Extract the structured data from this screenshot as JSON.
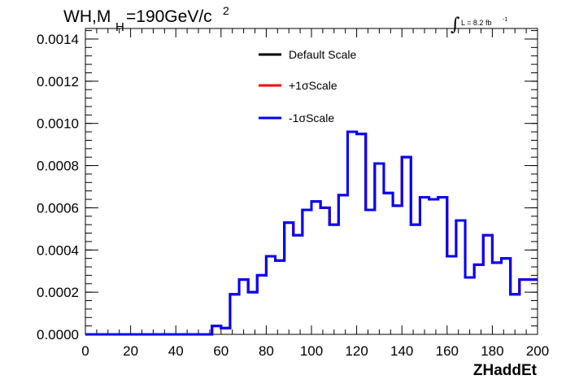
{
  "chart_data": {
    "type": "line",
    "drawstyle": "step",
    "title_main": "WH,M",
    "title_sub": "H",
    "title_rest": "=190GeV/c",
    "title_sup": "2",
    "lumi_label": "L = 8.2 fb",
    "lumi_sup": "-1",
    "lumi_symbol": "∫",
    "xlabel": "ZHaddEt",
    "ylabel": "",
    "xlim": [
      0,
      200
    ],
    "ylim": [
      0,
      0.00145
    ],
    "x_ticks": [
      "0",
      "20",
      "40",
      "60",
      "80",
      "100",
      "120",
      "140",
      "160",
      "180",
      "200"
    ],
    "x_tick_values": [
      0,
      20,
      40,
      60,
      80,
      100,
      120,
      140,
      160,
      180,
      200
    ],
    "y_ticks": [
      "0.0000",
      "0.0002",
      "0.0004",
      "0.0006",
      "0.0008",
      "0.0010",
      "0.0012",
      "0.0014"
    ],
    "y_tick_values": [
      0,
      0.0002,
      0.0004,
      0.0006,
      0.0008,
      0.001,
      0.0012,
      0.0014
    ],
    "bin_edges": [
      0,
      4,
      8,
      12,
      16,
      20,
      24,
      28,
      32,
      36,
      40,
      44,
      48,
      52,
      56,
      60,
      64,
      68,
      72,
      76,
      80,
      84,
      88,
      92,
      96,
      100,
      104,
      108,
      112,
      116,
      120,
      124,
      128,
      132,
      136,
      140,
      144,
      148,
      152,
      156,
      160,
      164,
      168,
      172,
      176,
      180,
      184,
      188,
      192,
      196,
      200
    ],
    "series": [
      {
        "name": "Default Scale",
        "color": "#000000",
        "values": [
          0,
          0,
          0,
          0,
          0,
          0,
          0,
          0,
          0,
          0,
          0,
          0,
          0,
          0,
          4e-05,
          3e-05,
          0.00019,
          0.00026,
          0.0002,
          0.00028,
          0.00037,
          0.00035,
          0.00053,
          0.00047,
          0.00059,
          0.00063,
          0.0006,
          0.00052,
          0.00066,
          0.00096,
          0.00095,
          0.00059,
          0.00081,
          0.00067,
          0.00061,
          0.00084,
          0.00052,
          0.00065,
          0.00064,
          0.00065,
          0.00037,
          0.00054,
          0.00027,
          0.00033,
          0.00047,
          0.00034,
          0.00036,
          0.00019,
          0.00026,
          0.00026
        ]
      },
      {
        "name": "+1σScale",
        "color": "#ff0000",
        "values": [
          0,
          0,
          0,
          0,
          0,
          0,
          0,
          0,
          0,
          0,
          0,
          0,
          0,
          0,
          4e-05,
          3e-05,
          0.00019,
          0.00026,
          0.0002,
          0.00028,
          0.00037,
          0.00035,
          0.00053,
          0.00047,
          0.00059,
          0.00063,
          0.0006,
          0.00052,
          0.00066,
          0.00096,
          0.00095,
          0.00059,
          0.00081,
          0.00067,
          0.00061,
          0.00084,
          0.00052,
          0.00065,
          0.00064,
          0.00065,
          0.00037,
          0.00054,
          0.00027,
          0.00033,
          0.00047,
          0.00034,
          0.00036,
          0.00019,
          0.00026,
          0.00026
        ]
      },
      {
        "name": "-1σScale",
        "color": "#0000ff",
        "values": [
          0,
          0,
          0,
          0,
          0,
          0,
          0,
          0,
          0,
          0,
          0,
          0,
          0,
          0,
          4e-05,
          3e-05,
          0.00019,
          0.00026,
          0.0002,
          0.00028,
          0.00037,
          0.00035,
          0.00053,
          0.00047,
          0.00059,
          0.00063,
          0.0006,
          0.00052,
          0.00066,
          0.00096,
          0.00095,
          0.00059,
          0.00081,
          0.00067,
          0.00061,
          0.00084,
          0.00052,
          0.00065,
          0.00064,
          0.00065,
          0.00037,
          0.00054,
          0.00027,
          0.00033,
          0.00047,
          0.00034,
          0.00036,
          0.00019,
          0.00026,
          0.00026
        ]
      }
    ],
    "legend_position": "top-center",
    "grid": false
  }
}
